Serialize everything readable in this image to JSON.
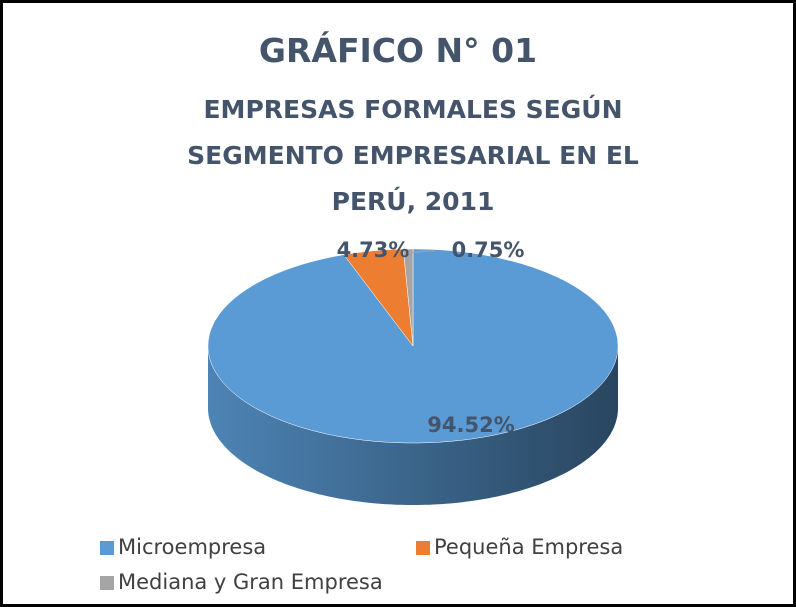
{
  "chart_data": {
    "type": "pie",
    "title": "GRÁFICO N° 01",
    "subtitle": "EMPRESAS FORMALES SEGÚN SEGMENTO EMPRESARIAL EN EL PERÚ, 2011",
    "categories": [
      "Microempresa",
      "Pequeña Empresa",
      "Mediana y Gran Empresa"
    ],
    "values": [
      94.52,
      4.73,
      0.75
    ],
    "value_labels": [
      "94.52%",
      "4.73%",
      "0.75%"
    ],
    "colors": [
      "#5b9bd5",
      "#ed7d31",
      "#a5a5a5"
    ],
    "legend": "bottom"
  }
}
